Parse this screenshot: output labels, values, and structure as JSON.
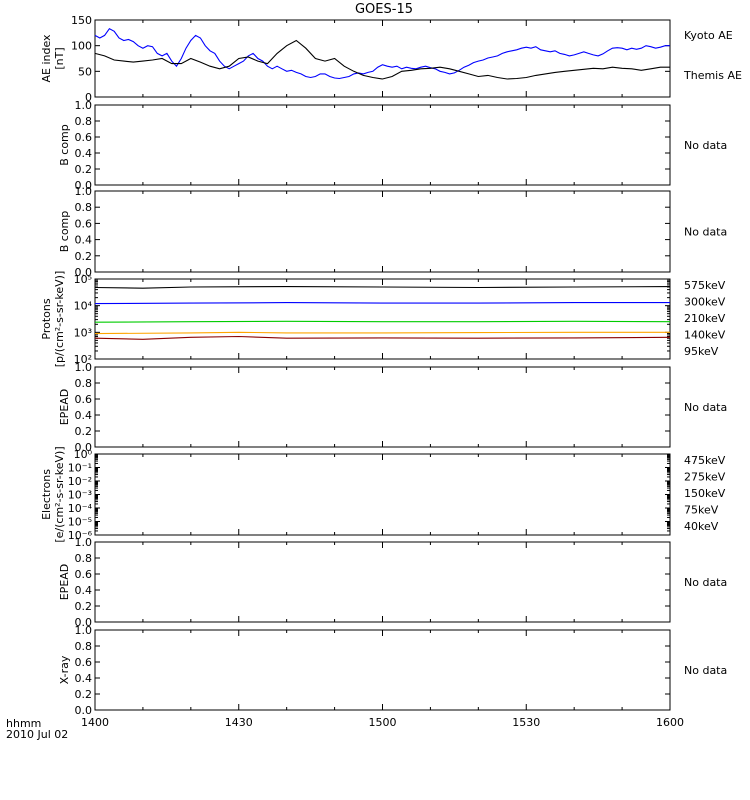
{
  "title": "GOES-15",
  "time_axis": {
    "label_line1": "hhmm",
    "label_line2": "2010 Jul 02",
    "ticks": [
      "1400",
      "1430",
      "1500",
      "1530",
      "1600"
    ],
    "range_minutes": [
      0,
      120
    ]
  },
  "chart_data": [
    {
      "type": "line",
      "panel": "ae",
      "ylabel": "AE index\n[nT]",
      "ylim": [
        0,
        150
      ],
      "yticks": [
        "0",
        "50",
        "100",
        "150"
      ],
      "series": [
        {
          "name": "Kyoto AE",
          "color": "#0000ff",
          "points": [
            [
              0,
              120
            ],
            [
              1,
              115
            ],
            [
              2,
              120
            ],
            [
              3,
              133
            ],
            [
              4,
              128
            ],
            [
              5,
              115
            ],
            [
              6,
              110
            ],
            [
              7,
              112
            ],
            [
              8,
              108
            ],
            [
              9,
              100
            ],
            [
              10,
              95
            ],
            [
              11,
              100
            ],
            [
              12,
              98
            ],
            [
              13,
              85
            ],
            [
              14,
              80
            ],
            [
              15,
              85
            ],
            [
              16,
              70
            ],
            [
              17,
              60
            ],
            [
              18,
              75
            ],
            [
              19,
              95
            ],
            [
              20,
              110
            ],
            [
              21,
              120
            ],
            [
              22,
              115
            ],
            [
              23,
              100
            ],
            [
              24,
              90
            ],
            [
              25,
              85
            ],
            [
              26,
              70
            ],
            [
              27,
              60
            ],
            [
              28,
              55
            ],
            [
              29,
              60
            ],
            [
              30,
              65
            ],
            [
              31,
              70
            ],
            [
              32,
              80
            ],
            [
              33,
              85
            ],
            [
              34,
              75
            ],
            [
              35,
              70
            ],
            [
              36,
              60
            ],
            [
              37,
              55
            ],
            [
              38,
              60
            ],
            [
              39,
              55
            ],
            [
              40,
              50
            ],
            [
              41,
              52
            ],
            [
              42,
              48
            ],
            [
              43,
              45
            ],
            [
              44,
              40
            ],
            [
              45,
              38
            ],
            [
              46,
              40
            ],
            [
              47,
              45
            ],
            [
              48,
              45
            ],
            [
              49,
              40
            ],
            [
              50,
              37
            ],
            [
              51,
              36
            ],
            [
              52,
              38
            ],
            [
              53,
              40
            ],
            [
              54,
              45
            ],
            [
              55,
              47
            ],
            [
              56,
              45
            ],
            [
              57,
              48
            ],
            [
              58,
              50
            ],
            [
              59,
              58
            ],
            [
              60,
              63
            ],
            [
              61,
              60
            ],
            [
              62,
              58
            ],
            [
              63,
              60
            ],
            [
              64,
              55
            ],
            [
              65,
              58
            ],
            [
              66,
              56
            ],
            [
              67,
              55
            ],
            [
              68,
              58
            ],
            [
              69,
              60
            ],
            [
              70,
              57
            ],
            [
              71,
              55
            ],
            [
              72,
              50
            ],
            [
              73,
              48
            ],
            [
              74,
              45
            ],
            [
              75,
              47
            ],
            [
              76,
              52
            ],
            [
              77,
              58
            ],
            [
              78,
              62
            ],
            [
              79,
              67
            ],
            [
              80,
              70
            ],
            [
              81,
              72
            ],
            [
              82,
              76
            ],
            [
              83,
              78
            ],
            [
              84,
              80
            ],
            [
              85,
              85
            ],
            [
              86,
              88
            ],
            [
              87,
              90
            ],
            [
              88,
              92
            ],
            [
              89,
              95
            ],
            [
              90,
              97
            ],
            [
              91,
              95
            ],
            [
              92,
              98
            ],
            [
              93,
              92
            ],
            [
              94,
              90
            ],
            [
              95,
              88
            ],
            [
              96,
              90
            ],
            [
              97,
              85
            ],
            [
              98,
              83
            ],
            [
              99,
              80
            ],
            [
              100,
              82
            ],
            [
              101,
              85
            ],
            [
              102,
              88
            ],
            [
              103,
              85
            ],
            [
              104,
              82
            ],
            [
              105,
              80
            ],
            [
              106,
              84
            ],
            [
              107,
              90
            ],
            [
              108,
              95
            ],
            [
              109,
              96
            ],
            [
              110,
              95
            ],
            [
              111,
              92
            ],
            [
              112,
              95
            ],
            [
              113,
              93
            ],
            [
              114,
              95
            ],
            [
              115,
              100
            ],
            [
              116,
              98
            ],
            [
              117,
              95
            ],
            [
              118,
              97
            ],
            [
              119,
              100
            ],
            [
              120,
              100
            ]
          ]
        },
        {
          "name": "Themis AE",
          "color": "#000000",
          "points": [
            [
              0,
              85
            ],
            [
              2,
              80
            ],
            [
              4,
              72
            ],
            [
              6,
              70
            ],
            [
              8,
              68
            ],
            [
              10,
              70
            ],
            [
              12,
              72
            ],
            [
              14,
              75
            ],
            [
              16,
              65
            ],
            [
              18,
              65
            ],
            [
              20,
              75
            ],
            [
              22,
              68
            ],
            [
              24,
              60
            ],
            [
              26,
              55
            ],
            [
              28,
              60
            ],
            [
              30,
              75
            ],
            [
              32,
              78
            ],
            [
              34,
              70
            ],
            [
              36,
              65
            ],
            [
              38,
              85
            ],
            [
              40,
              100
            ],
            [
              42,
              110
            ],
            [
              44,
              95
            ],
            [
              46,
              75
            ],
            [
              48,
              70
            ],
            [
              50,
              75
            ],
            [
              52,
              60
            ],
            [
              54,
              50
            ],
            [
              56,
              42
            ],
            [
              58,
              38
            ],
            [
              60,
              35
            ],
            [
              62,
              40
            ],
            [
              64,
              50
            ],
            [
              66,
              52
            ],
            [
              68,
              55
            ],
            [
              70,
              56
            ],
            [
              72,
              58
            ],
            [
              74,
              55
            ],
            [
              76,
              50
            ],
            [
              78,
              45
            ],
            [
              80,
              40
            ],
            [
              82,
              42
            ],
            [
              84,
              38
            ],
            [
              86,
              35
            ],
            [
              88,
              36
            ],
            [
              90,
              38
            ],
            [
              92,
              42
            ],
            [
              94,
              45
            ],
            [
              96,
              48
            ],
            [
              98,
              50
            ],
            [
              100,
              52
            ],
            [
              102,
              54
            ],
            [
              104,
              56
            ],
            [
              106,
              55
            ],
            [
              108,
              58
            ],
            [
              110,
              56
            ],
            [
              112,
              55
            ],
            [
              114,
              52
            ],
            [
              116,
              55
            ],
            [
              118,
              58
            ],
            [
              120,
              58
            ]
          ]
        }
      ]
    },
    {
      "type": "line",
      "panel": "b-comp-1",
      "ylabel": "B comp",
      "ylim": [
        0,
        1
      ],
      "yticks": [
        "0.0",
        "0.2",
        "0.4",
        "0.6",
        "0.8",
        "1.0"
      ],
      "no_data_text": "No data",
      "series": []
    },
    {
      "type": "line",
      "panel": "b-comp-2",
      "ylabel": "B comp",
      "ylim": [
        0,
        1
      ],
      "yticks": [
        "0.0",
        "0.2",
        "0.4",
        "0.6",
        "0.8",
        "1.0"
      ],
      "no_data_text": "No data",
      "series": []
    },
    {
      "type": "line",
      "panel": "protons",
      "ylabel": "Protons\n[p/(cm²-s-sr-keV)]",
      "yscale": "log",
      "ylim": [
        100,
        100000
      ],
      "yticks": [
        "10²",
        "10³",
        "10⁴",
        "10⁵"
      ],
      "series": [
        {
          "name": "575keV",
          "color": "#8b0000",
          "points": [
            [
              0,
              600
            ],
            [
              10,
              550
            ],
            [
              20,
              650
            ],
            [
              30,
              700
            ],
            [
              40,
              600
            ],
            [
              60,
              620
            ],
            [
              80,
              600
            ],
            [
              100,
              620
            ],
            [
              120,
              650
            ]
          ]
        },
        {
          "name": "300keV",
          "color": "#ffa500",
          "points": [
            [
              0,
              900
            ],
            [
              20,
              950
            ],
            [
              30,
              1000
            ],
            [
              40,
              950
            ],
            [
              60,
              950
            ],
            [
              80,
              980
            ],
            [
              100,
              1000
            ],
            [
              120,
              1000
            ]
          ]
        },
        {
          "name": "210keV",
          "color": "#00cc00",
          "points": [
            [
              0,
              2400
            ],
            [
              20,
              2500
            ],
            [
              40,
              2600
            ],
            [
              60,
              2500
            ],
            [
              80,
              2500
            ],
            [
              100,
              2600
            ],
            [
              120,
              2500
            ]
          ]
        },
        {
          "name": "140keV",
          "color": "#0000ff",
          "points": [
            [
              0,
              12000
            ],
            [
              20,
              12500
            ],
            [
              40,
              13000
            ],
            [
              60,
              12500
            ],
            [
              80,
              12500
            ],
            [
              100,
              13000
            ],
            [
              120,
              13000
            ]
          ]
        },
        {
          "name": "95keV",
          "color": "#000000",
          "points": [
            [
              0,
              48000
            ],
            [
              10,
              45000
            ],
            [
              20,
              50000
            ],
            [
              40,
              52000
            ],
            [
              60,
              50000
            ],
            [
              80,
              48000
            ],
            [
              100,
              50000
            ],
            [
              120,
              52000
            ]
          ]
        }
      ]
    },
    {
      "type": "line",
      "panel": "epead-1",
      "ylabel": "EPEAD",
      "ylim": [
        0,
        1
      ],
      "yticks": [
        "0.0",
        "0.2",
        "0.4",
        "0.6",
        "0.8",
        "1.0"
      ],
      "no_data_text": "No data",
      "series": []
    },
    {
      "type": "line",
      "panel": "electrons",
      "ylabel": "Electrons\n[e/(cm²-s-sr-keV)]",
      "yscale": "log",
      "ylim": [
        1e-06,
        1
      ],
      "yticks": [
        "10⁻⁶",
        "10⁻⁵",
        "10⁻⁴",
        "10⁻³",
        "10⁻²",
        "10⁻¹",
        "10⁰"
      ],
      "series": [
        {
          "name": "475keV",
          "color": "#8b0000",
          "points": []
        },
        {
          "name": "275keV",
          "color": "#ffa500",
          "points": []
        },
        {
          "name": "150keV",
          "color": "#00cc00",
          "points": []
        },
        {
          "name": "75keV",
          "color": "#0000ff",
          "points": []
        },
        {
          "name": "40keV",
          "color": "#000000",
          "points": []
        }
      ]
    },
    {
      "type": "line",
      "panel": "epead-2",
      "ylabel": "EPEAD",
      "ylim": [
        0,
        1
      ],
      "yticks": [
        "0.0",
        "0.2",
        "0.4",
        "0.6",
        "0.8",
        "1.0"
      ],
      "no_data_text": "No data",
      "series": []
    },
    {
      "type": "line",
      "panel": "x-ray",
      "ylabel": "X-ray",
      "ylim": [
        0,
        1
      ],
      "yticks": [
        "0.0",
        "0.2",
        "0.4",
        "0.6",
        "0.8",
        "1.0"
      ],
      "no_data_text": "No data",
      "series": []
    }
  ]
}
